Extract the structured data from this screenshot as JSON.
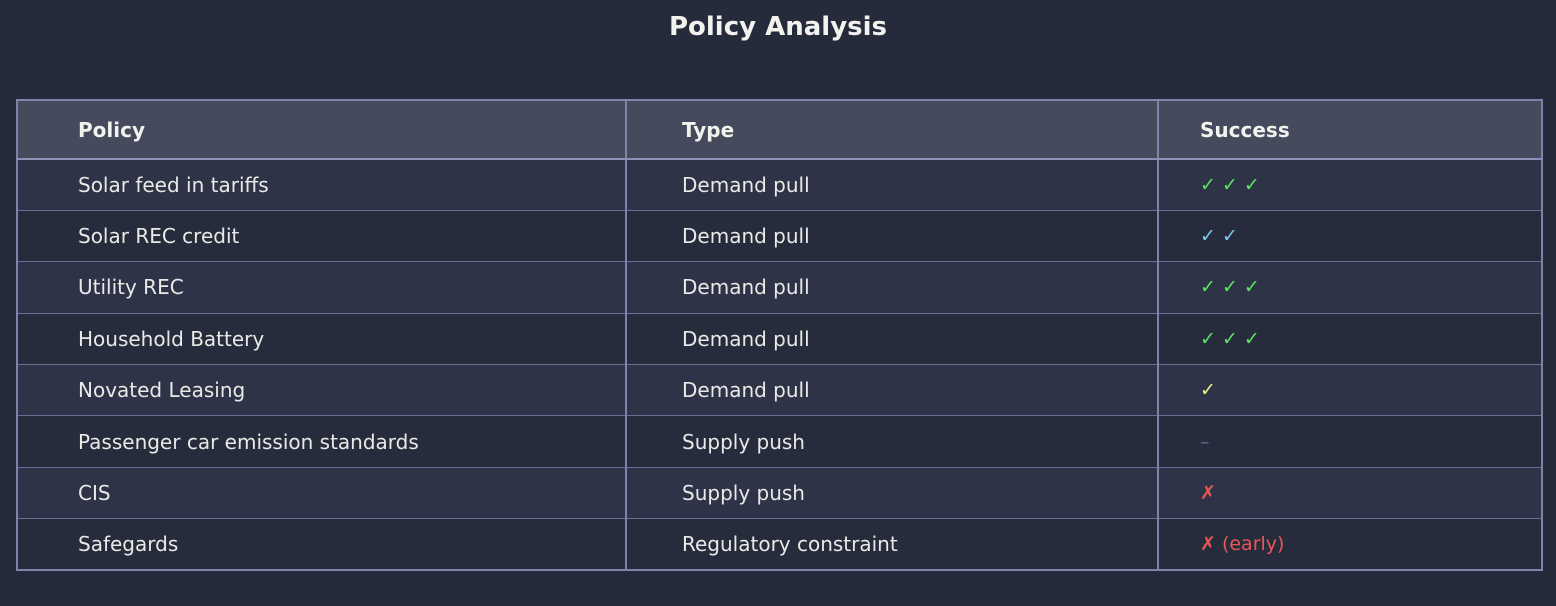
{
  "title": "Policy Analysis",
  "colors": {
    "page_bg": "#262b3b",
    "header_bg": "#454a5d",
    "row_odd_bg": "#2e3348",
    "row_even_bg": "#272c3d",
    "border": "#7c85a9",
    "row_line": "#666e93",
    "header_text": "#f3f3ee",
    "cell_text": "#e9e9e6",
    "success_green": "#5de463",
    "success_blue": "#7fc7ef",
    "success_yellow": "#edf087",
    "success_neutral": "#5d6a96",
    "success_red": "#e85757"
  },
  "table": {
    "columns": [
      "Policy",
      "Type",
      "Success"
    ],
    "rows": [
      {
        "policy": "Solar feed in tariffs",
        "type": "Demand pull",
        "success": "✓ ✓ ✓",
        "success_color": "#5de463"
      },
      {
        "policy": "Solar REC credit",
        "type": "Demand pull",
        "success": "✓ ✓",
        "success_color": "#7fc7ef"
      },
      {
        "policy": "Utility REC",
        "type": "Demand pull",
        "success": "✓ ✓ ✓",
        "success_color": "#5de463"
      },
      {
        "policy": "Household Battery",
        "type": "Demand pull",
        "success": "✓ ✓ ✓",
        "success_color": "#5de463"
      },
      {
        "policy": "Novated Leasing",
        "type": "Demand pull",
        "success": "✓",
        "success_color": "#edf087"
      },
      {
        "policy": "Passenger car emission standards",
        "type": "Supply push",
        "success": "–",
        "success_color": "#5d6a96"
      },
      {
        "policy": "CIS",
        "type": "Supply push",
        "success": "✗",
        "success_color": "#e85757"
      },
      {
        "policy": "Safegards",
        "type": "Regulatory constraint",
        "success": "✗ (early)",
        "success_color": "#e85757"
      }
    ]
  },
  "chart_data": {
    "type": "table",
    "title": "Policy Analysis",
    "columns": [
      "Policy",
      "Type",
      "Success"
    ],
    "rows": [
      [
        "Solar feed in tariffs",
        "Demand pull",
        "✓ ✓ ✓"
      ],
      [
        "Solar REC credit",
        "Demand pull",
        "✓ ✓"
      ],
      [
        "Utility REC",
        "Demand pull",
        "✓ ✓ ✓"
      ],
      [
        "Household Battery",
        "Demand pull",
        "✓ ✓ ✓"
      ],
      [
        "Novated Leasing",
        "Demand pull",
        "✓"
      ],
      [
        "Passenger car emission standards",
        "Supply push",
        "–"
      ],
      [
        "CIS",
        "Supply push",
        "✗"
      ],
      [
        "Safegards",
        "Regulatory constraint",
        "✗ (early)"
      ]
    ],
    "legend_position": "none",
    "grid": true
  }
}
